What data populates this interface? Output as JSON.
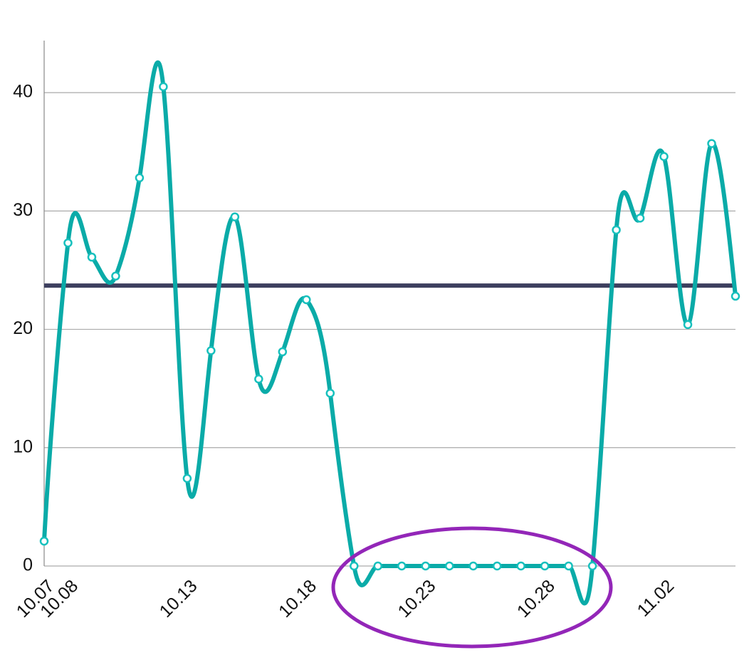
{
  "chart_data": {
    "type": "line",
    "categories": [
      "10.07",
      "10.08",
      null,
      null,
      null,
      null,
      "10.13",
      null,
      null,
      null,
      null,
      "10.18",
      null,
      null,
      null,
      null,
      "10.23",
      null,
      null,
      null,
      null,
      "10.28",
      null,
      null,
      null,
      null,
      "11.02",
      null,
      null,
      null
    ],
    "series": [
      {
        "color": "#0aaba8",
        "values": [
          2.1,
          27.3,
          26.1,
          24.5,
          32.8,
          40.5,
          7.4,
          18.2,
          29.5,
          15.8,
          18.1,
          22.5,
          14.6,
          0,
          0,
          0,
          0,
          0,
          0,
          0,
          0,
          0,
          0,
          0,
          28.4,
          29.4,
          34.6,
          20.4,
          35.7,
          22.8
        ]
      }
    ],
    "reference_line": {
      "value": 23.7,
      "color": "#3d3f5e"
    },
    "ylim": [
      0,
      44.4
    ],
    "yticks": [
      0,
      10,
      20,
      30,
      40
    ],
    "grid": true
  }
}
